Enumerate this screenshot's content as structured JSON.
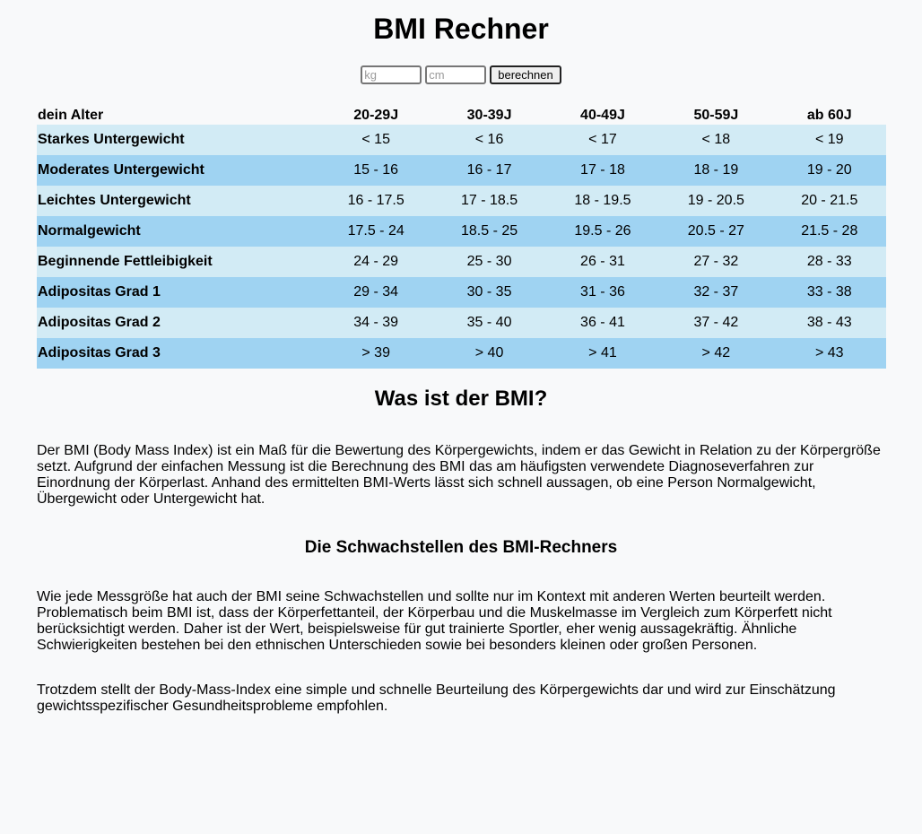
{
  "title": "BMI Rechner",
  "calculator": {
    "weight_placeholder": "kg",
    "height_placeholder": "cm",
    "button_label": "berechnen"
  },
  "table": {
    "header": [
      "dein Alter",
      "20-29J",
      "30-39J",
      "40-49J",
      "50-59J",
      "ab 60J"
    ],
    "rows": [
      {
        "label": "Starkes Untergewicht",
        "values": [
          "< 15",
          "< 16",
          "< 17",
          "< 18",
          "< 19"
        ]
      },
      {
        "label": "Moderates Untergewicht",
        "values": [
          "15 - 16",
          "16 - 17",
          "17 - 18",
          "18 - 19",
          "19 - 20"
        ]
      },
      {
        "label": "Leichtes Untergewicht",
        "values": [
          "16 - 17.5",
          "17 - 18.5",
          "18 - 19.5",
          "19 - 20.5",
          "20 - 21.5"
        ]
      },
      {
        "label": "Normalgewicht",
        "values": [
          "17.5 - 24",
          "18.5 - 25",
          "19.5 - 26",
          "20.5 - 27",
          "21.5 - 28"
        ]
      },
      {
        "label": "Beginnende Fettleibigkeit",
        "values": [
          "24 - 29",
          "25 - 30",
          "26 - 31",
          "27 - 32",
          "28 - 33"
        ]
      },
      {
        "label": "Adipositas Grad 1",
        "values": [
          "29 - 34",
          "30 - 35",
          "31 - 36",
          "32 - 37",
          "33 - 38"
        ]
      },
      {
        "label": "Adipositas Grad 2",
        "values": [
          "34 - 39",
          "35 - 40",
          "36 - 41",
          "37 - 42",
          "38 - 43"
        ]
      },
      {
        "label": "Adipositas Grad 3",
        "values": [
          "> 39",
          "> 40",
          "> 41",
          "> 42",
          "> 43"
        ]
      }
    ]
  },
  "article": {
    "heading": "Was ist der BMI?",
    "intro": "Der BMI (Body Mass Index) ist ein Maß für die Bewertung des Körpergewichts, indem er das Gewicht in Relation zu der Körpergröße setzt. Aufgrund der einfachen Messung ist die Berechnung des BMI das am häufigsten verwendete Diagnoseverfahren zur Einordnung der Körperlast. Anhand des ermittelten BMI-Werts lässt sich schnell aussagen, ob eine Person Normalgewicht, Übergewicht oder Untergewicht hat.",
    "subheading": "Die Schwachstellen des BMI-Rechners",
    "weaknesses": "Wie jede Messgröße hat auch der BMI seine Schwachstellen und sollte nur im Kontext mit anderen Werten beurteilt werden. Problematisch beim BMI ist, dass der Körperfettanteil, der Körperbau und die Muskelmasse im Vergleich zum Körperfett nicht berücksichtigt werden. Daher ist der Wert, beispielsweise für gut trainierte Sportler, eher wenig aussagekräftig. Ähnliche Schwierigkeiten bestehen bei den ethnischen Unterschieden sowie bei besonders kleinen oder großen Personen.",
    "conclusion": "Trotzdem stellt der Body-Mass-Index eine simple und schnelle Beurteilung des Körpergewichts dar und wird zur Einschätzung gewichtsspezifischer Gesundheitsprobleme empfohlen."
  }
}
